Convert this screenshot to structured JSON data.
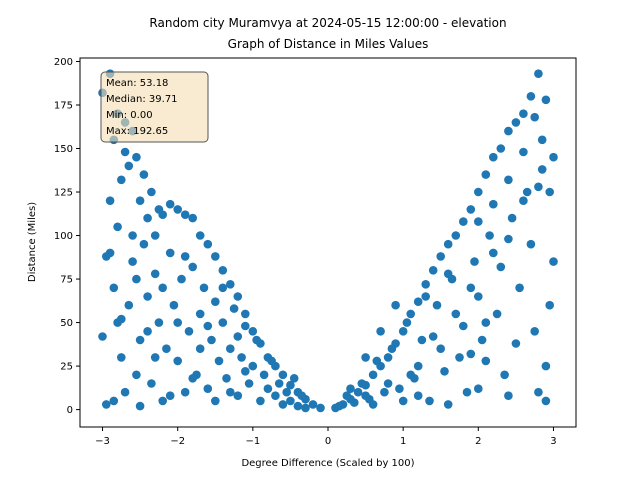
{
  "chart_data": {
    "type": "scatter",
    "title_line1": "Random city Muramvya at 2024-05-15 12:00:00  - elevation",
    "title_line2": "Graph of Distance in Miles Values",
    "xlabel": "Degree Difference (Scaled by 100)",
    "ylabel": "Distance (Miles)",
    "xlim": [
      -3.3,
      3.3
    ],
    "ylim": [
      -10,
      202
    ],
    "xticks": [
      -3,
      -2,
      -1,
      0,
      1,
      2,
      3
    ],
    "xtick_labels": [
      "−3",
      "−2",
      "−1",
      "0",
      "1",
      "2",
      "3"
    ],
    "yticks": [
      0,
      25,
      50,
      75,
      100,
      125,
      150,
      175,
      200
    ],
    "ytick_labels": [
      "0",
      "25",
      "50",
      "75",
      "100",
      "125",
      "150",
      "175",
      "200"
    ],
    "grid": false,
    "marker_color": "#1f77b4",
    "stats_box": {
      "mean": "Mean: 53.18",
      "median": "Median: 39.71",
      "min": "Min: 0.00",
      "max": "Max: 192.65",
      "background": "#f5deb3"
    },
    "points": [
      [
        -3.0,
        182
      ],
      [
        -2.9,
        193
      ],
      [
        -2.85,
        155
      ],
      [
        -2.8,
        170
      ],
      [
        -2.75,
        132
      ],
      [
        -2.7,
        165
      ],
      [
        -2.65,
        140
      ],
      [
        -2.6,
        160
      ],
      [
        -2.55,
        145
      ],
      [
        -2.5,
        120
      ],
      [
        -2.45,
        135
      ],
      [
        -2.4,
        110
      ],
      [
        -2.35,
        125
      ],
      [
        -2.3,
        100
      ],
      [
        -2.25,
        115
      ],
      [
        -2.2,
        112
      ],
      [
        -2.1,
        118
      ],
      [
        -2.0,
        115
      ],
      [
        -1.9,
        112
      ],
      [
        -1.8,
        110
      ],
      [
        -1.7,
        100
      ],
      [
        -1.6,
        95
      ],
      [
        -1.5,
        88
      ],
      [
        -1.4,
        80
      ],
      [
        -1.3,
        72
      ],
      [
        -1.2,
        65
      ],
      [
        -1.1,
        55
      ],
      [
        -1.0,
        45
      ],
      [
        -0.9,
        38
      ],
      [
        -0.8,
        30
      ],
      [
        -0.7,
        25
      ],
      [
        -0.6,
        20
      ],
      [
        -0.5,
        14
      ],
      [
        -0.4,
        10
      ],
      [
        -0.3,
        6
      ],
      [
        -0.2,
        3
      ],
      [
        -0.1,
        1
      ],
      [
        -2.95,
        3
      ],
      [
        -2.9,
        90
      ],
      [
        -2.85,
        70
      ],
      [
        -2.8,
        50
      ],
      [
        -2.75,
        30
      ],
      [
        -2.7,
        10
      ],
      [
        -2.65,
        60
      ],
      [
        -2.6,
        85
      ],
      [
        -2.55,
        20
      ],
      [
        -2.5,
        40
      ],
      [
        -2.45,
        95
      ],
      [
        -2.4,
        65
      ],
      [
        -2.35,
        15
      ],
      [
        -2.3,
        78
      ],
      [
        -2.25,
        50
      ],
      [
        -2.2,
        5
      ],
      [
        -2.15,
        35
      ],
      [
        -2.1,
        90
      ],
      [
        -2.05,
        60
      ],
      [
        -2.0,
        28
      ],
      [
        -1.95,
        75
      ],
      [
        -1.9,
        10
      ],
      [
        -1.85,
        45
      ],
      [
        -1.8,
        82
      ],
      [
        -1.75,
        20
      ],
      [
        -1.7,
        55
      ],
      [
        -1.65,
        70
      ],
      [
        -1.6,
        12
      ],
      [
        -1.55,
        40
      ],
      [
        -1.5,
        62
      ],
      [
        -1.45,
        28
      ],
      [
        -1.4,
        50
      ],
      [
        -1.35,
        18
      ],
      [
        -1.3,
        35
      ],
      [
        -1.25,
        58
      ],
      [
        -1.2,
        8
      ],
      [
        -1.15,
        30
      ],
      [
        -1.1,
        48
      ],
      [
        -1.05,
        15
      ],
      [
        -1.0,
        25
      ],
      [
        -0.95,
        40
      ],
      [
        -0.9,
        5
      ],
      [
        -0.85,
        20
      ],
      [
        -0.8,
        12
      ],
      [
        -0.75,
        28
      ],
      [
        -0.7,
        8
      ],
      [
        -0.65,
        15
      ],
      [
        -0.6,
        3
      ],
      [
        -0.55,
        10
      ],
      [
        -0.5,
        5
      ],
      [
        -0.45,
        18
      ],
      [
        -0.4,
        2
      ],
      [
        -0.35,
        8
      ],
      [
        -0.3,
        1
      ],
      [
        -3.0,
        42
      ],
      [
        -2.95,
        88
      ],
      [
        -2.9,
        120
      ],
      [
        -2.85,
        5
      ],
      [
        -2.8,
        105
      ],
      [
        -2.75,
        52
      ],
      [
        -2.7,
        148
      ],
      [
        -2.6,
        100
      ],
      [
        -2.55,
        75
      ],
      [
        -2.5,
        2
      ],
      [
        -2.4,
        45
      ],
      [
        -2.3,
        30
      ],
      [
        -2.2,
        70
      ],
      [
        -2.1,
        8
      ],
      [
        -2.0,
        50
      ],
      [
        -1.9,
        88
      ],
      [
        -1.8,
        18
      ],
      [
        -1.7,
        35
      ],
      [
        -1.6,
        48
      ],
      [
        -1.5,
        5
      ],
      [
        -1.4,
        70
      ],
      [
        -1.3,
        10
      ],
      [
        -1.2,
        42
      ],
      [
        -1.1,
        22
      ],
      [
        0.1,
        1
      ],
      [
        0.2,
        3
      ],
      [
        0.3,
        6
      ],
      [
        0.4,
        10
      ],
      [
        0.5,
        14
      ],
      [
        0.6,
        20
      ],
      [
        0.7,
        25
      ],
      [
        0.8,
        30
      ],
      [
        0.9,
        38
      ],
      [
        1.0,
        45
      ],
      [
        1.1,
        55
      ],
      [
        1.2,
        62
      ],
      [
        1.3,
        72
      ],
      [
        1.4,
        80
      ],
      [
        1.5,
        88
      ],
      [
        1.6,
        95
      ],
      [
        1.7,
        100
      ],
      [
        1.8,
        108
      ],
      [
        1.9,
        115
      ],
      [
        2.0,
        125
      ],
      [
        2.1,
        135
      ],
      [
        2.2,
        145
      ],
      [
        2.3,
        150
      ],
      [
        2.4,
        160
      ],
      [
        2.5,
        165
      ],
      [
        2.6,
        170
      ],
      [
        2.7,
        180
      ],
      [
        2.8,
        193
      ],
      [
        2.9,
        178
      ],
      [
        3.0,
        145
      ],
      [
        0.15,
        2
      ],
      [
        0.25,
        8
      ],
      [
        0.35,
        4
      ],
      [
        0.45,
        15
      ],
      [
        0.55,
        6
      ],
      [
        0.65,
        28
      ],
      [
        0.75,
        10
      ],
      [
        0.85,
        35
      ],
      [
        0.95,
        12
      ],
      [
        1.05,
        50
      ],
      [
        1.15,
        18
      ],
      [
        1.25,
        40
      ],
      [
        1.35,
        5
      ],
      [
        1.45,
        60
      ],
      [
        1.55,
        22
      ],
      [
        1.65,
        75
      ],
      [
        1.75,
        30
      ],
      [
        1.85,
        10
      ],
      [
        1.95,
        85
      ],
      [
        2.05,
        40
      ],
      [
        2.15,
        100
      ],
      [
        2.25,
        55
      ],
      [
        2.35,
        20
      ],
      [
        2.45,
        110
      ],
      [
        2.55,
        70
      ],
      [
        2.65,
        125
      ],
      [
        2.75,
        45
      ],
      [
        2.85,
        138
      ],
      [
        2.95,
        60
      ],
      [
        3.0,
        85
      ],
      [
        0.5,
        30
      ],
      [
        0.7,
        45
      ],
      [
        0.9,
        60
      ],
      [
        1.1,
        20
      ],
      [
        1.3,
        65
      ],
      [
        1.5,
        35
      ],
      [
        1.7,
        55
      ],
      [
        1.9,
        70
      ],
      [
        2.1,
        28
      ],
      [
        2.3,
        82
      ],
      [
        2.5,
        38
      ],
      [
        2.7,
        95
      ],
      [
        2.9,
        5
      ],
      [
        2.95,
        125
      ],
      [
        2.85,
        155
      ],
      [
        2.8,
        128
      ],
      [
        2.75,
        168
      ],
      [
        2.6,
        120
      ],
      [
        2.4,
        98
      ],
      [
        2.2,
        90
      ],
      [
        2.0,
        65
      ],
      [
        1.8,
        48
      ],
      [
        1.6,
        78
      ],
      [
        1.4,
        42
      ],
      [
        1.2,
        25
      ],
      [
        1.0,
        5
      ],
      [
        0.8,
        15
      ],
      [
        0.6,
        3
      ],
      [
        2.0,
        108
      ],
      [
        2.2,
        118
      ],
      [
        2.4,
        132
      ],
      [
        2.6,
        148
      ],
      [
        1.2,
        8
      ],
      [
        1.6,
        3
      ],
      [
        2.0,
        12
      ],
      [
        2.4,
        8
      ],
      [
        2.8,
        10
      ],
      [
        2.9,
        25
      ],
      [
        2.1,
        50
      ],
      [
        1.9,
        32
      ],
      [
        0.3,
        12
      ],
      [
        0.5,
        8
      ]
    ]
  }
}
